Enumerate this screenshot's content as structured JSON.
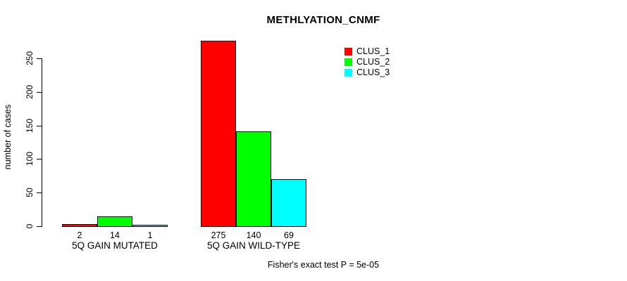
{
  "chart_data": {
    "type": "bar",
    "title": "METHLYATION_CNMF",
    "ylabel": "number of cases",
    "xlabel": "",
    "annotation": "Fisher's exact test P = 5e-05",
    "categories": [
      "5Q GAIN MUTATED",
      "5Q GAIN WILD-TYPE"
    ],
    "series": [
      {
        "name": "CLUS_1",
        "color": "#ff0000",
        "values": [
          2,
          275
        ]
      },
      {
        "name": "CLUS_2",
        "color": "#00ff00",
        "values": [
          14,
          140
        ]
      },
      {
        "name": "CLUS_3",
        "color": "#00ffff",
        "values": [
          1,
          69
        ]
      }
    ],
    "show_bar_values": true,
    "y_ticks": [
      0,
      50,
      100,
      150,
      200,
      250
    ],
    "ylim": [
      0,
      250
    ],
    "grid": false,
    "legend": {
      "position": "top-right",
      "entries": [
        "CLUS_1",
        "CLUS_2",
        "CLUS_3"
      ]
    },
    "axis_color": "#000000",
    "text_color": "#000000",
    "background": "#ffffff"
  }
}
